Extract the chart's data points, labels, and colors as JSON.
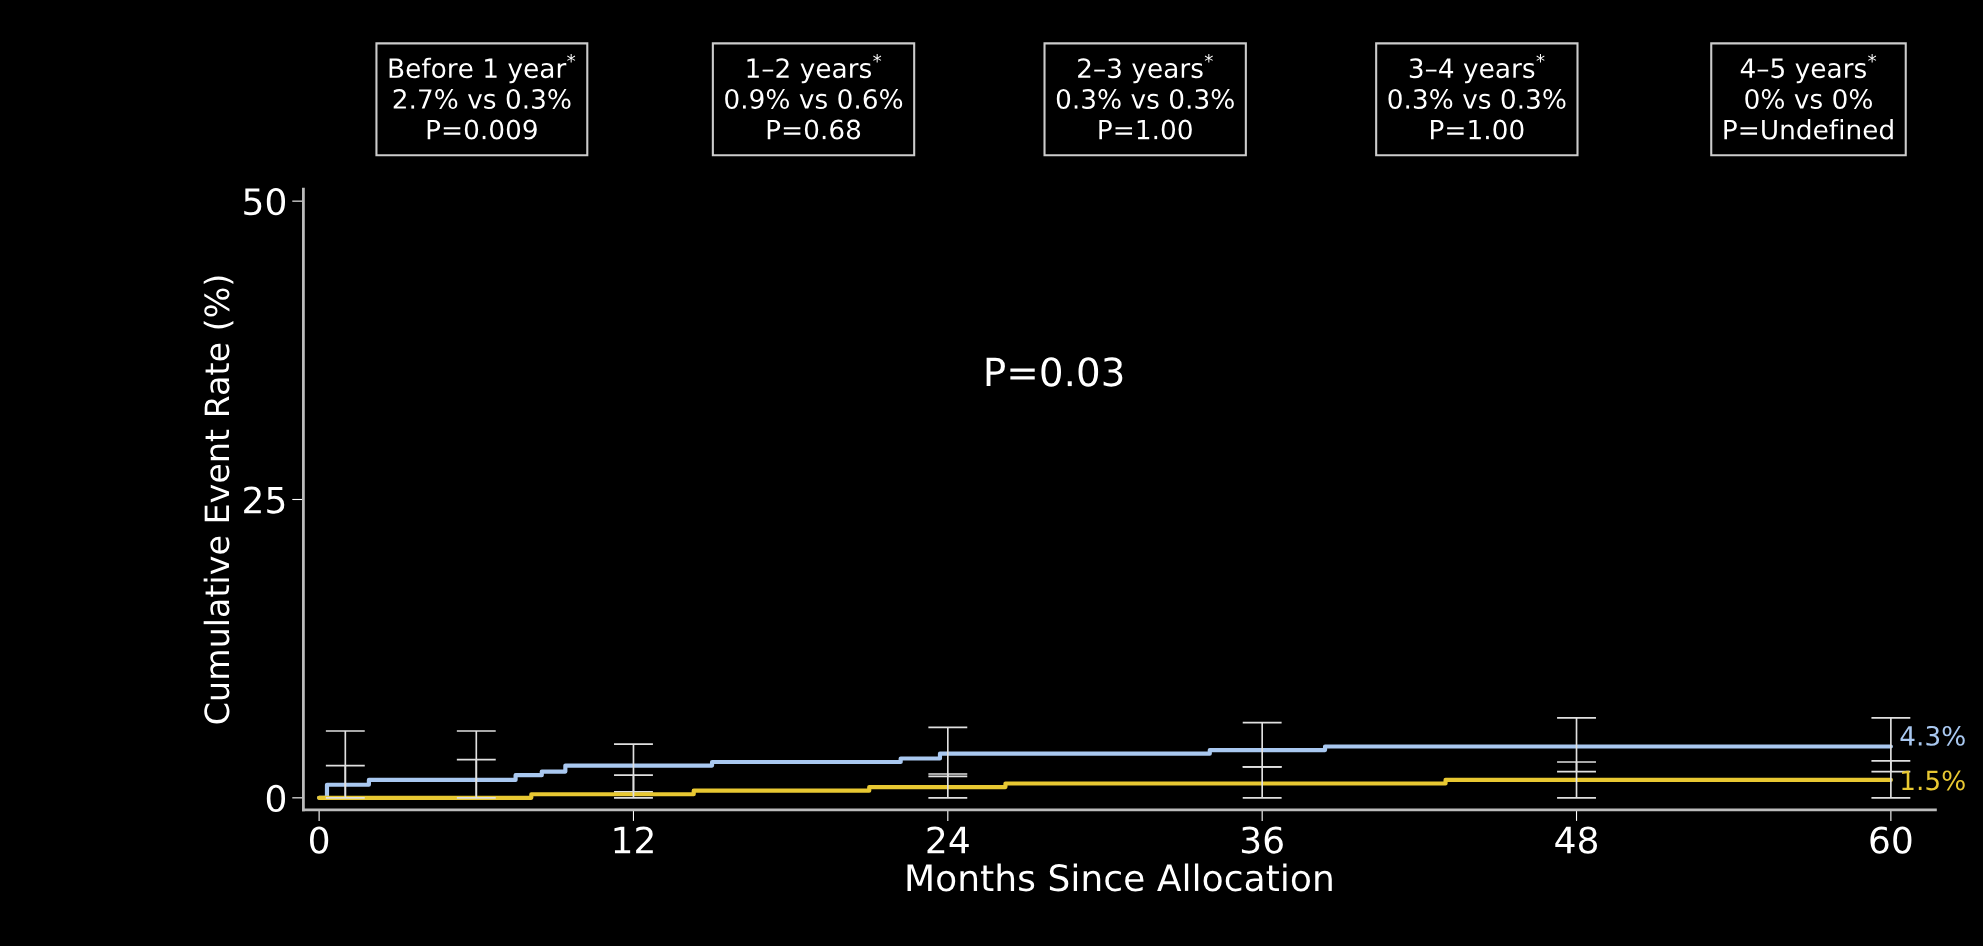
{
  "chart_data": {
    "type": "step",
    "xlabel": "Months Since Allocation",
    "ylabel": "Cumulative Event Rate (%)",
    "xlim": [
      -0.6,
      61.7
    ],
    "ylim": [
      -1,
      51
    ],
    "xticks": [
      0,
      12,
      24,
      36,
      48,
      60
    ],
    "yticks": [
      0,
      25,
      50
    ],
    "grid": false,
    "legend": false,
    "marker": "none",
    "line_style": "solid",
    "series": [
      {
        "color": "#a9c8f0",
        "x": [
          0,
          0.3,
          1,
          1.9,
          6,
          7.5,
          8.5,
          9.4,
          12,
          15,
          22.2,
          23.7,
          24,
          34,
          36,
          38.4,
          48,
          60
        ],
        "values": [
          0,
          1.1,
          1.1,
          1.5,
          1.5,
          1.9,
          2.2,
          2.7,
          2.7,
          3.0,
          3.3,
          3.7,
          3.7,
          4.0,
          4.0,
          4.3,
          4.3,
          4.3
        ],
        "errors": [
          null,
          null,
          [
            0,
            5.6
          ],
          null,
          [
            0,
            5.6
          ],
          null,
          null,
          null,
          [
            0.5,
            4.5
          ],
          null,
          null,
          null,
          [
            1.8,
            5.9
          ],
          null,
          [
            2.6,
            6.3
          ],
          null,
          [
            2.2,
            6.7
          ],
          [
            2.2,
            6.7
          ]
        ],
        "value_labels": [
          null,
          null,
          null,
          null,
          null,
          null,
          null,
          null,
          null,
          null,
          null,
          null,
          null,
          null,
          null,
          null,
          null,
          "4.3%"
        ]
      },
      {
        "color": "#e8c832",
        "x": [
          0,
          1,
          6,
          8.1,
          12,
          14.3,
          21,
          24,
          26.2,
          36,
          43,
          48,
          60
        ],
        "values": [
          0,
          0,
          0,
          0.3,
          0.3,
          0.6,
          0.9,
          0.9,
          1.2,
          1.2,
          1.5,
          1.5,
          1.5
        ],
        "errors": [
          null,
          [
            0,
            2.7
          ],
          [
            0,
            3.2
          ],
          null,
          [
            0,
            1.9
          ],
          null,
          null,
          [
            0,
            2.0
          ],
          null,
          [
            0,
            2.6
          ],
          null,
          [
            0,
            3.0
          ],
          [
            0,
            3.1
          ]
        ],
        "value_labels": [
          null,
          null,
          null,
          null,
          null,
          null,
          null,
          null,
          null,
          null,
          null,
          null,
          "1.5%"
        ]
      }
    ],
    "annotations": [
      "Before 1 year$^{*}$\n2.7% vs 0.3%\nP=0.009",
      "1–2 years$^{*}$\n0.9% vs 0.6%\nP=0.68",
      "2–3 years$^{*}$\n0.3% vs 0.3%\nP=1.00",
      "3–4 years$^{*}$\n0.3% vs 0.3%\nP=1.00",
      "4–5 years$^{*}$\n0% vs 0%\nP=Undefined",
      "P=0.03"
    ]
  }
}
